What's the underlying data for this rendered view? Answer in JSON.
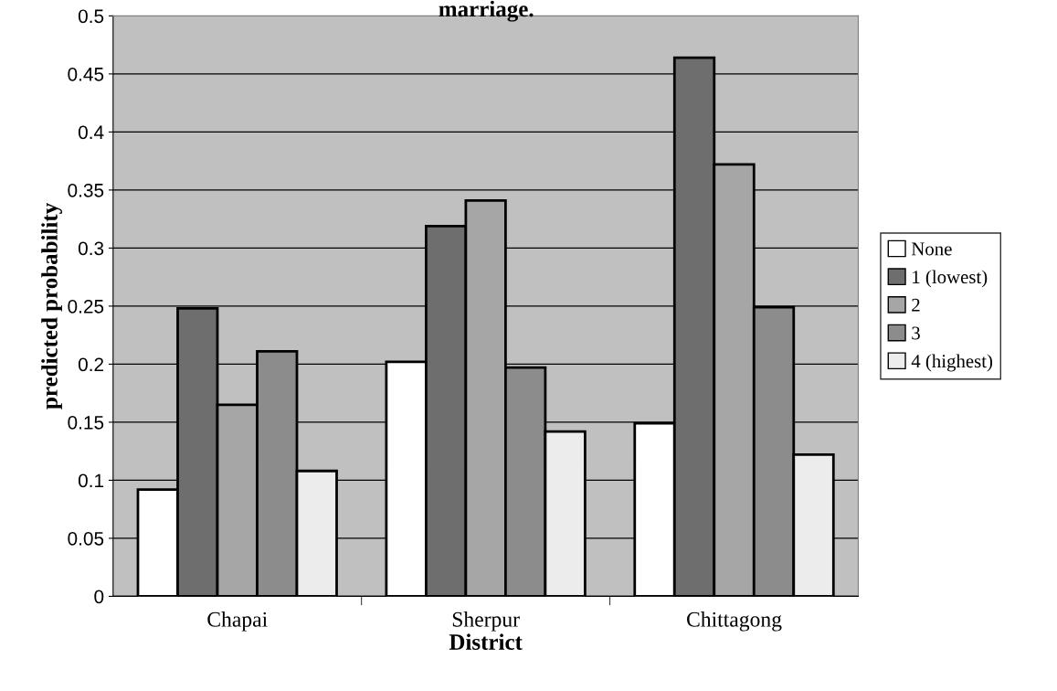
{
  "chart_data": {
    "type": "bar",
    "title": "marriage.",
    "xlabel": "District",
    "ylabel": "predicted probability",
    "categories": [
      "Chapai",
      "Sherpur",
      "Chittagong"
    ],
    "series": [
      {
        "name": "None",
        "color": "#ffffff",
        "values": [
          0.092,
          0.202,
          0.149
        ]
      },
      {
        "name": "1 (lowest)",
        "color": "#6e6e6e",
        "values": [
          0.248,
          0.319,
          0.464
        ]
      },
      {
        "name": "2",
        "color": "#a6a6a6",
        "values": [
          0.165,
          0.341,
          0.372
        ]
      },
      {
        "name": "3",
        "color": "#8c8c8c",
        "values": [
          0.211,
          0.197,
          0.249
        ]
      },
      {
        "name": "4 (highest)",
        "color": "#ececec",
        "values": [
          0.108,
          0.142,
          0.122
        ]
      }
    ],
    "ylim": [
      0,
      0.5
    ],
    "yticks": [
      0,
      0.05,
      0.1,
      0.15,
      0.2,
      0.25,
      0.3,
      0.35,
      0.4,
      0.45,
      0.5
    ],
    "grid": "y",
    "legend": "right"
  }
}
